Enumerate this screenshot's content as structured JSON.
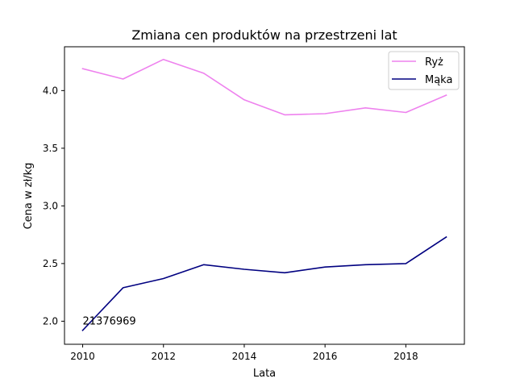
{
  "chart_data": {
    "type": "line",
    "title": "Zmiana cen produktów na przestrzeni lat",
    "xlabel": "Lata",
    "ylabel": "Cena w zł/kg",
    "x": [
      2010,
      2011,
      2012,
      2013,
      2014,
      2015,
      2016,
      2017,
      2018,
      2019
    ],
    "xlim": [
      2009.55,
      2019.45
    ],
    "ylim": [
      1.8,
      4.38
    ],
    "xticks": [
      "2010",
      "2012",
      "2014",
      "2016",
      "2018"
    ],
    "yticks": [
      "2.0",
      "2.5",
      "3.0",
      "3.5",
      "4.0"
    ],
    "series": [
      {
        "name": "Ryż",
        "color": "#ee82ee",
        "values": [
          4.19,
          4.1,
          4.27,
          4.15,
          3.92,
          3.79,
          3.8,
          3.85,
          3.81,
          3.96
        ]
      },
      {
        "name": "Mąka",
        "color": "#000080",
        "values": [
          1.92,
          2.29,
          2.37,
          2.49,
          2.45,
          2.42,
          2.47,
          2.49,
          2.5,
          2.73
        ]
      }
    ],
    "legend": "top-right",
    "grid": false,
    "annotation": {
      "text": "21376969",
      "x": 2010,
      "y": 1.97
    }
  }
}
